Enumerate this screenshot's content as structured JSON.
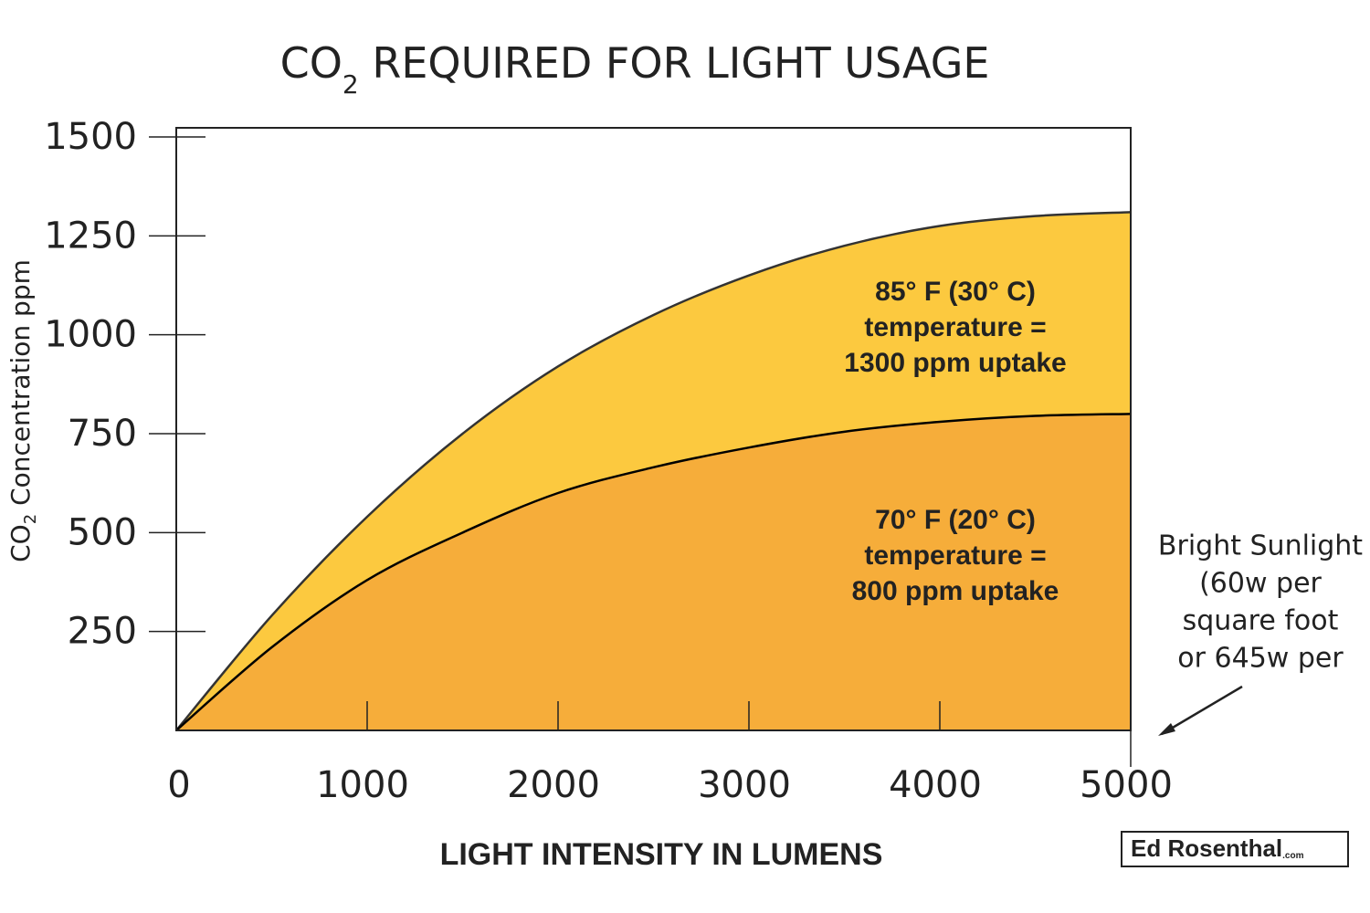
{
  "chart_data": {
    "type": "area",
    "title": [
      "CO",
      "2",
      " REQUIRED FOR LIGHT USAGE"
    ],
    "y_label": [
      "CO",
      "2",
      " Concentration ppm"
    ],
    "x_label": "LIGHT INTENSITY IN LUMENS",
    "x": [
      0,
      500,
      1000,
      1500,
      2000,
      2500,
      3000,
      3500,
      4000,
      4500,
      5000
    ],
    "series": [
      {
        "color": "#fcc93f",
        "stroke": "#333333",
        "labels": [
          "85° F (30° C)",
          "temperature =",
          "1300 ppm uptake"
        ],
        "values": [
          0,
          290,
          540,
          750,
          920,
          1050,
          1150,
          1225,
          1275,
          1300,
          1310
        ]
      },
      {
        "color": "#f6ad3a",
        "stroke": "#000000",
        "labels": [
          "70° F (20° C)",
          "temperature =",
          "800 ppm uptake"
        ],
        "values": [
          0,
          210,
          380,
          500,
          600,
          665,
          715,
          755,
          780,
          795,
          800
        ]
      }
    ],
    "xlim": [
      0,
      5000
    ],
    "xticks": [
      0,
      1000,
      2000,
      3000,
      4000,
      5000
    ],
    "ylim": [
      0,
      1500
    ],
    "yticks": [
      250,
      500,
      750,
      1000,
      1250,
      1500
    ],
    "annotation": [
      "Bright Sunlight",
      "(60w per",
      "square foot",
      "or 645w per"
    ],
    "logo": [
      "Ed Rosenthal",
      ".com"
    ]
  }
}
